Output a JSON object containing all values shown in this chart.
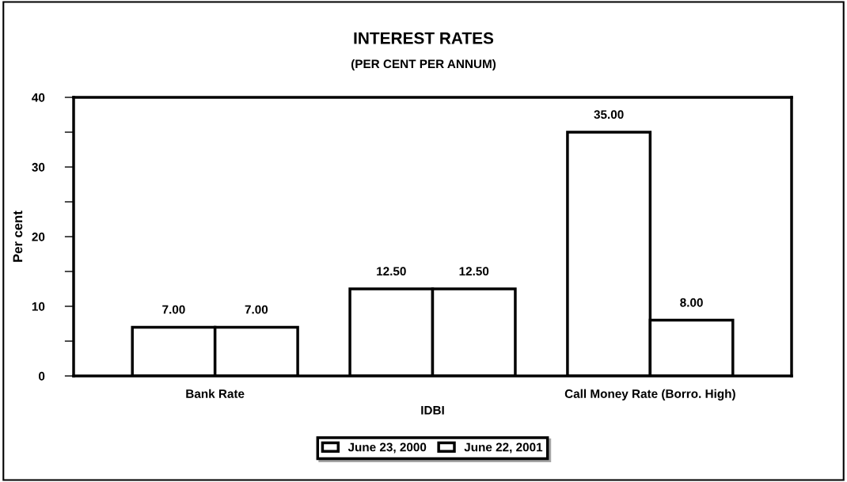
{
  "chart_data": {
    "type": "bar",
    "title": "INTEREST RATES",
    "subtitle": "(PER CENT PER ANNUM)",
    "ylabel": "Per cent",
    "categories": [
      "Bank Rate",
      "IDBI",
      "Call Money Rate (Borro. High)"
    ],
    "series": [
      {
        "name": "June 23, 2000",
        "color": "#ffffff",
        "values": [
          7.0,
          12.5,
          35.0
        ],
        "value_labels": [
          "7.00",
          "12.50",
          "35.00"
        ]
      },
      {
        "name": "June 22, 2001",
        "color": "#ffffff",
        "values": [
          7.0,
          12.5,
          8.0
        ],
        "value_labels": [
          "7.00",
          "12.50",
          "8.00"
        ]
      }
    ],
    "ylim": [
      0,
      40
    ],
    "yticks": [
      0,
      {
        "value": 5,
        "label": null
      },
      10,
      {
        "value": 15,
        "label": null
      },
      20,
      {
        "value": 25,
        "label": null
      },
      30,
      {
        "value": 35,
        "label": null
      },
      40
    ],
    "legend": "bottom",
    "grid": false
  }
}
